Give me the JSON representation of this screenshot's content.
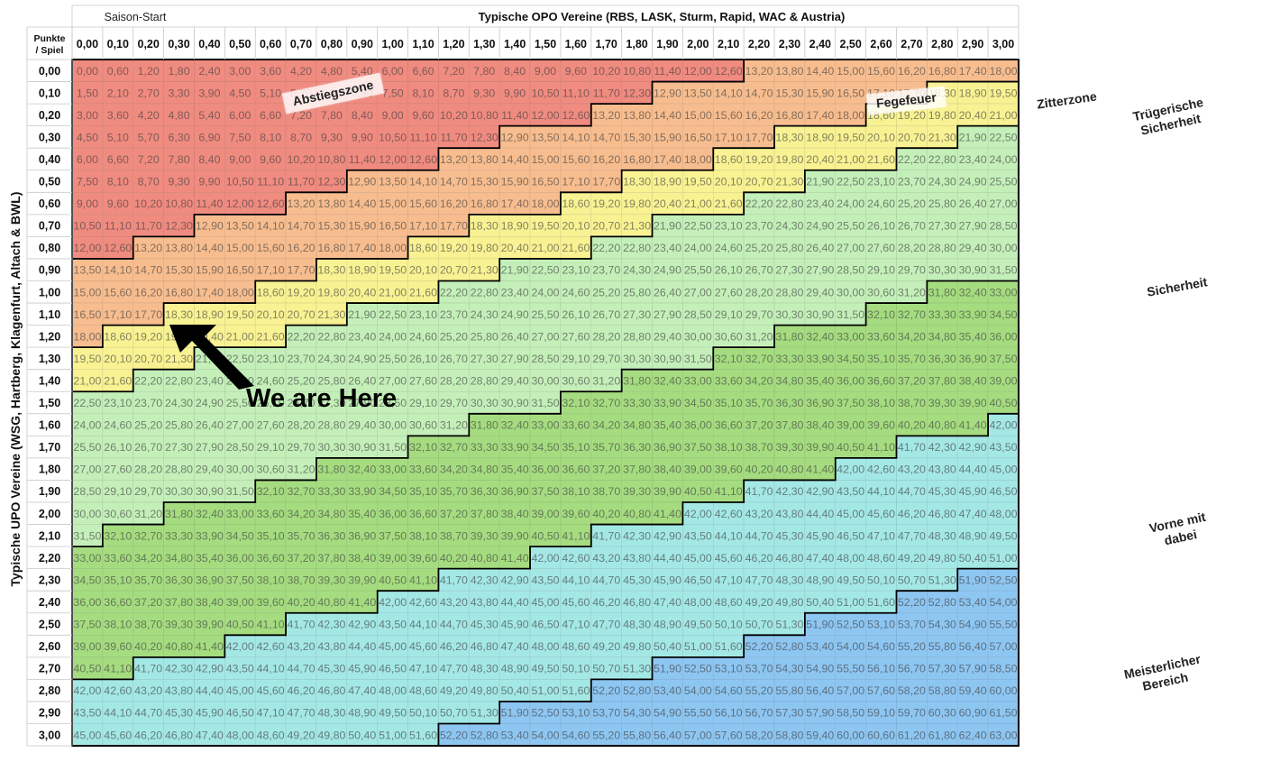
{
  "chart_data": {
    "type": "table",
    "corner_label": "Punkte / Spiel",
    "corner_lines": [
      "Punkte",
      "/ Spiel"
    ],
    "col_header_start": "Saison-Start",
    "col_header_title": "Typische OPO Vereine (RBS, LASK, Sturm, Rapid, WAC & Austria)",
    "row_header_title": "Typische UPO Vereine (WSG, Hartberg, Klagenfurt, Altach & BWL)",
    "columns": [
      "0,00",
      "0,10",
      "0,20",
      "0,30",
      "0,40",
      "0,50",
      "0,60",
      "0,70",
      "0,80",
      "0,90",
      "1,00",
      "1,10",
      "1,20",
      "1,30",
      "1,40",
      "1,50",
      "1,60",
      "1,70",
      "1,80",
      "1,90",
      "2,00",
      "2,10",
      "2,20",
      "2,30",
      "2,40",
      "2,50",
      "2,60",
      "2,70",
      "2,80",
      "2,90",
      "3,00"
    ],
    "rows": [
      "0,00",
      "0,10",
      "0,20",
      "0,30",
      "0,40",
      "0,50",
      "0,60",
      "0,70",
      "0,80",
      "0,90",
      "1,00",
      "1,10",
      "1,20",
      "1,30",
      "1,40",
      "1,50",
      "1,60",
      "1,70",
      "1,80",
      "1,90",
      "2,00",
      "2,10",
      "2,20",
      "2,30",
      "2,40",
      "2,50",
      "2,60",
      "2,70",
      "2,80",
      "2,90",
      "3,00"
    ],
    "cell_formula": "cell value = 15 × row points-per-game + 6 × column points-per-game",
    "zone_thresholds": [
      12.6,
      18.0,
      21.6,
      31.5,
      41.4,
      51.6,
      63.0
    ],
    "zone_colors": [
      "#f08b80",
      "#f7bd8f",
      "#f8f293",
      "#c4efb9",
      "#a5dc80",
      "#a4e8e6",
      "#8ec6f2"
    ],
    "zones": [
      "Abstiegszone",
      "Fegefeuer",
      "Zitterzone",
      "Trügerische Sicherheit",
      "Sicherheit",
      "Vorne mit dabei",
      "Meisterlicher Bereich"
    ]
  },
  "labels": {
    "abstieg": "Abstiegszone",
    "fegefeuer": "Fegefeuer",
    "zitter": "Zitterzone",
    "truegerisch": "Trügerische Sicherheit",
    "sicherheit": "Sicherheit",
    "vorne": "Vorne mit dabei",
    "meister": "Meisterlicher Bereich",
    "here": "We are Here"
  }
}
